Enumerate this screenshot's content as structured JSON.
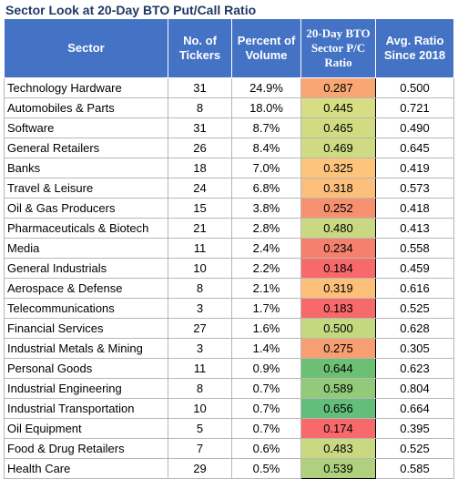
{
  "title": "Sector Look at 20-Day BTO Put/Call Ratio",
  "headers": {
    "sector": "Sector",
    "tickers": "No. of Tickers",
    "volume": "Percent of Volume",
    "bto": "20-Day BTO Sector P/C Ratio",
    "avg": "Avg. Ratio Since 2018"
  },
  "rows": [
    {
      "sector": "Technology Hardware",
      "tickers": "31",
      "volume": "24.9%",
      "bto": "0.287",
      "avg": "0.500",
      "color": "#f8a774"
    },
    {
      "sector": "Automobiles & Parts",
      "tickers": "8",
      "volume": "18.0%",
      "bto": "0.445",
      "avg": "0.721",
      "color": "#d6dd82"
    },
    {
      "sector": "Software",
      "tickers": "31",
      "volume": "8.7%",
      "bto": "0.465",
      "avg": "0.490",
      "color": "#d0db82"
    },
    {
      "sector": "General Retailers",
      "tickers": "26",
      "volume": "8.4%",
      "bto": "0.469",
      "avg": "0.645",
      "color": "#cfdb82"
    },
    {
      "sector": "Banks",
      "tickers": "18",
      "volume": "7.0%",
      "bto": "0.325",
      "avg": "0.419",
      "color": "#fdc47c"
    },
    {
      "sector": "Travel & Leisure",
      "tickers": "24",
      "volume": "6.8%",
      "bto": "0.318",
      "avg": "0.573",
      "color": "#fcbf7b"
    },
    {
      "sector": "Oil & Gas Producers",
      "tickers": "15",
      "volume": "3.8%",
      "bto": "0.252",
      "avg": "0.418",
      "color": "#f6906f"
    },
    {
      "sector": "Pharmaceuticals & Biotech",
      "tickers": "21",
      "volume": "2.8%",
      "bto": "0.480",
      "avg": "0.413",
      "color": "#cad981"
    },
    {
      "sector": "Media",
      "tickers": "11",
      "volume": "2.4%",
      "bto": "0.234",
      "avg": "0.558",
      "color": "#f5806d"
    },
    {
      "sector": "General Industrials",
      "tickers": "10",
      "volume": "2.2%",
      "bto": "0.184",
      "avg": "0.459",
      "color": "#f8696b"
    },
    {
      "sector": "Aerospace & Defense",
      "tickers": "8",
      "volume": "2.1%",
      "bto": "0.319",
      "avg": "0.616",
      "color": "#fcc07b"
    },
    {
      "sector": "Telecommunications",
      "tickers": "3",
      "volume": "1.7%",
      "bto": "0.183",
      "avg": "0.525",
      "color": "#f8696b"
    },
    {
      "sector": "Financial Services",
      "tickers": "27",
      "volume": "1.6%",
      "bto": "0.500",
      "avg": "0.628",
      "color": "#c4d880"
    },
    {
      "sector": "Industrial Metals & Mining",
      "tickers": "3",
      "volume": "1.4%",
      "bto": "0.275",
      "avg": "0.305",
      "color": "#f79f72"
    },
    {
      "sector": "Personal Goods",
      "tickers": "11",
      "volume": "0.9%",
      "bto": "0.644",
      "avg": "0.623",
      "color": "#6dbf73"
    },
    {
      "sector": "Industrial Engineering",
      "tickers": "8",
      "volume": "0.7%",
      "bto": "0.589",
      "avg": "0.804",
      "color": "#93ca79"
    },
    {
      "sector": "Industrial Transportation",
      "tickers": "10",
      "volume": "0.7%",
      "bto": "0.656",
      "avg": "0.664",
      "color": "#63be7b"
    },
    {
      "sector": "Oil Equipment",
      "tickers": "5",
      "volume": "0.7%",
      "bto": "0.174",
      "avg": "0.395",
      "color": "#f8696b"
    },
    {
      "sector": "Food & Drug Retailers",
      "tickers": "7",
      "volume": "0.6%",
      "bto": "0.483",
      "avg": "0.525",
      "color": "#c9d981"
    },
    {
      "sector": "Health Care",
      "tickers": "29",
      "volume": "0.5%",
      "bto": "0.539",
      "avg": "0.585",
      "color": "#afd17d"
    }
  ]
}
